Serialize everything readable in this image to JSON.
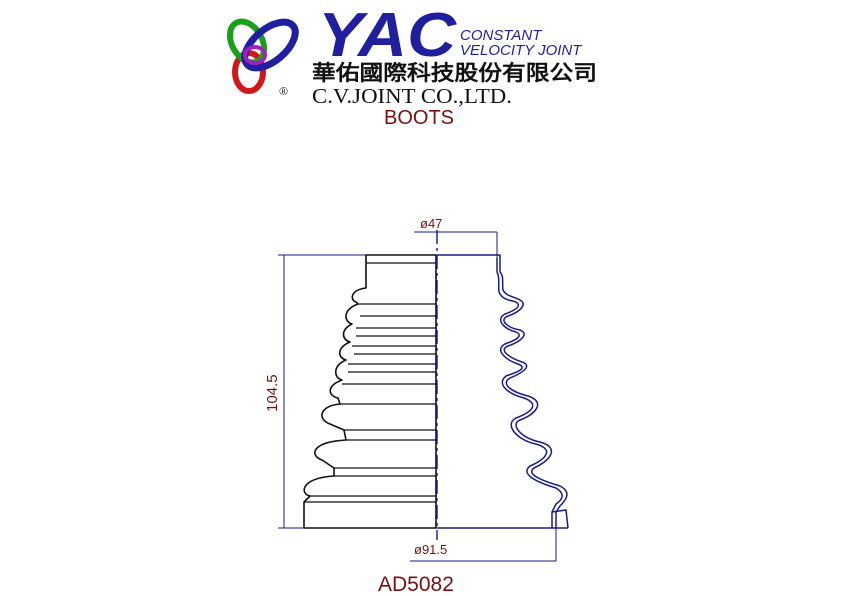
{
  "header": {
    "brand_mark": "YAC",
    "tagline_line1": "CONSTANT",
    "tagline_line2": "VELOCITY JOINT",
    "company_cn": "華佑國際科技股份有限公司",
    "company_en": "C.V.JOINT CO.,LTD.",
    "registered_mark": "®"
  },
  "drawing": {
    "title": "BOOTS",
    "small_diameter": "ø47",
    "large_diameter": "ø91.5",
    "height": "104.5",
    "part_number": "AD5082"
  },
  "colors": {
    "brand_blue": "#1f1f9f",
    "brand_red": "#d01818",
    "brand_green": "#18a018",
    "brand_purple": "#a020c0",
    "dimension_red": "#7a1010",
    "line_blue": "#1a1a8c",
    "outline": "#111111"
  }
}
